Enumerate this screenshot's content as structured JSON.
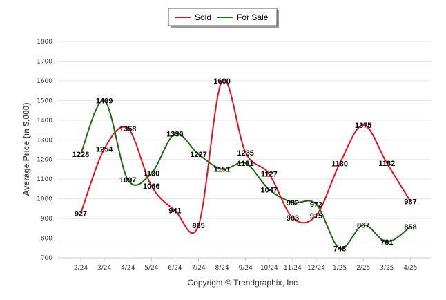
{
  "chart_data": {
    "type": "line",
    "title": "",
    "xlabel": "",
    "ylabel": "Average Price (in $,000)",
    "ylim": [
      700,
      1800
    ],
    "yticks": [
      700,
      800,
      900,
      1000,
      1100,
      1200,
      1300,
      1400,
      1500,
      1600,
      1700,
      1800
    ],
    "categories": [
      "2/24",
      "3/24",
      "4/24",
      "5/24",
      "6/24",
      "7/24",
      "8/24",
      "9/24",
      "10/24",
      "11/24",
      "12/24",
      "1/25",
      "2/25",
      "3/25",
      "4/25"
    ],
    "series": [
      {
        "name": "Sold",
        "color": "#e8101a",
        "values": [
          927,
          1254,
          1358,
          1066,
          941,
          865,
          1600,
          1235,
          1127,
          903,
          915,
          1180,
          1375,
          1182,
          987
        ]
      },
      {
        "name": "For Sale",
        "color": "#1a6b10",
        "values": [
          1228,
          1499,
          1097,
          1130,
          1330,
          1227,
          1151,
          1181,
          1047,
          982,
          973,
          748,
          867,
          781,
          858
        ]
      }
    ],
    "legend_position": "top-center",
    "grid": true
  },
  "footer": {
    "copyright": "Copyright © Trendgraphix, Inc."
  }
}
